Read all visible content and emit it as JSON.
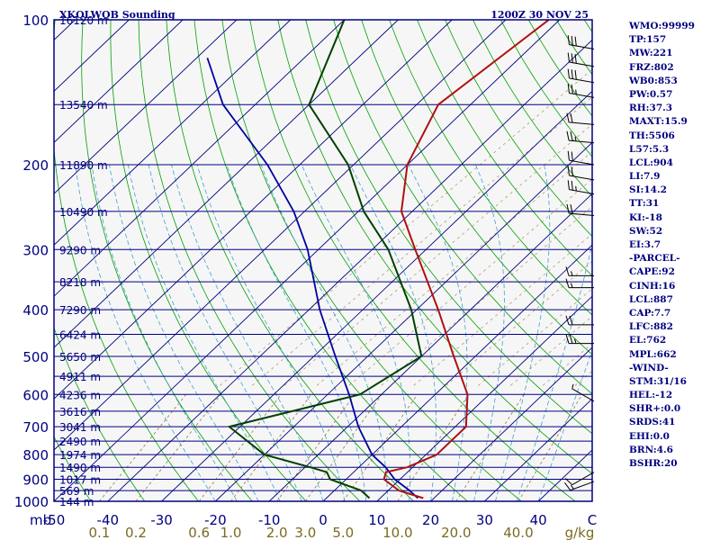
{
  "header": {
    "title": "XKQLWQB Sounding",
    "time": "1200Z 30 NOV 25"
  },
  "chart_data": {
    "type": "line",
    "diagram": "skew-t log-p",
    "pressure_range": [
      1000,
      100
    ],
    "temperature_range": [
      -50,
      50
    ],
    "pressure_labels": [
      "100",
      "200",
      "300",
      "400",
      "500",
      "600",
      "700",
      "800",
      "900",
      "1000"
    ],
    "pressure_levels": [
      100,
      150,
      200,
      250,
      300,
      350,
      400,
      450,
      500,
      550,
      600,
      650,
      700,
      750,
      800,
      850,
      900,
      950,
      1000
    ],
    "temperature_labels": [
      {
        "text": "-50",
        "t": -50
      },
      {
        "text": "-40",
        "t": -40
      },
      {
        "text": "-30",
        "t": -30
      },
      {
        "text": "-20",
        "t": -20
      },
      {
        "text": "-10",
        "t": -10
      },
      {
        "text": "0",
        "t": 0
      },
      {
        "text": "10",
        "t": 10
      },
      {
        "text": "20",
        "t": 20
      },
      {
        "text": "30",
        "t": 30
      },
      {
        "text": "40",
        "t": 40
      },
      {
        "text": "C",
        "t": 50
      }
    ],
    "pressure_axis_unit": "mb",
    "height_labels": [
      {
        "text": "16120 m",
        "p": 100
      },
      {
        "text": "13540 m",
        "p": 150
      },
      {
        "text": "11890 m",
        "p": 200
      },
      {
        "text": "10490 m",
        "p": 250
      },
      {
        "text": "9290 m",
        "p": 300
      },
      {
        "text": "8218 m",
        "p": 350
      },
      {
        "text": "7290 m",
        "p": 400
      },
      {
        "text": "6424 m",
        "p": 450
      },
      {
        "text": "5650 m",
        "p": 500
      },
      {
        "text": "4911 m",
        "p": 550
      },
      {
        "text": "4236 m",
        "p": 600
      },
      {
        "text": "3616 m",
        "p": 650
      },
      {
        "text": "3041 m",
        "p": 700
      },
      {
        "text": "2490 m",
        "p": 750
      },
      {
        "text": "1974 m",
        "p": 800
      },
      {
        "text": "1490 m",
        "p": 850
      },
      {
        "text": "1017 m",
        "p": 900
      },
      {
        "text": "569 m",
        "p": 950
      },
      {
        "text": "144 m",
        "p": 1000
      }
    ],
    "mixing_ratio_labels": [
      {
        "text": "0.1",
        "w": 0.1
      },
      {
        "text": "0.2",
        "w": 0.2
      },
      {
        "text": "0.6",
        "w": 0.6
      },
      {
        "text": "1.0",
        "w": 1.0
      },
      {
        "text": "2.0",
        "w": 2.0
      },
      {
        "text": "3.0",
        "w": 3.0
      },
      {
        "text": "5.0",
        "w": 5.0
      },
      {
        "text": "10.0",
        "w": 10.0
      },
      {
        "text": "20.0",
        "w": 20.0
      },
      {
        "text": "40.0",
        "w": 40.0
      }
    ],
    "mixing_ratio_unit": "g/kg",
    "temperature_profile": [
      {
        "p": 985,
        "t": 18
      },
      {
        "p": 950,
        "t": 12
      },
      {
        "p": 900,
        "t": 7
      },
      {
        "p": 870,
        "t": 6
      },
      {
        "p": 850,
        "t": 9
      },
      {
        "p": 800,
        "t": 12
      },
      {
        "p": 700,
        "t": 12
      },
      {
        "p": 600,
        "t": 6
      },
      {
        "p": 500,
        "t": -4
      },
      {
        "p": 400,
        "t": -16
      },
      {
        "p": 300,
        "t": -32
      },
      {
        "p": 250,
        "t": -42
      },
      {
        "p": 200,
        "t": -50
      },
      {
        "p": 150,
        "t": -56
      },
      {
        "p": 100,
        "t": -52
      }
    ],
    "dewpoint_profile": [
      {
        "p": 985,
        "t": 8
      },
      {
        "p": 950,
        "t": 5
      },
      {
        "p": 900,
        "t": -3
      },
      {
        "p": 870,
        "t": -5
      },
      {
        "p": 850,
        "t": -9
      },
      {
        "p": 800,
        "t": -20
      },
      {
        "p": 700,
        "t": -32
      },
      {
        "p": 600,
        "t": -14
      },
      {
        "p": 500,
        "t": -10
      },
      {
        "p": 400,
        "t": -21
      },
      {
        "p": 300,
        "t": -37
      },
      {
        "p": 250,
        "t": -49
      },
      {
        "p": 200,
        "t": -61
      },
      {
        "p": 150,
        "t": -80
      },
      {
        "p": 100,
        "t": -90
      }
    ],
    "parcel_profile": [
      {
        "p": 985,
        "t": 17
      },
      {
        "p": 950,
        "t": 14
      },
      {
        "p": 900,
        "t": 9
      },
      {
        "p": 850,
        "t": 5
      },
      {
        "p": 800,
        "t": 0
      },
      {
        "p": 700,
        "t": -8
      },
      {
        "p": 600,
        "t": -16
      },
      {
        "p": 500,
        "t": -26
      },
      {
        "p": 400,
        "t": -38
      },
      {
        "p": 300,
        "t": -52
      },
      {
        "p": 250,
        "t": -62
      },
      {
        "p": 200,
        "t": -76
      },
      {
        "p": 150,
        "t": -96
      },
      {
        "p": 120,
        "t": -108
      }
    ],
    "wind_barbs": [
      {
        "p": 115,
        "dir": 280,
        "kt": 30
      },
      {
        "p": 125,
        "dir": 280,
        "kt": 30
      },
      {
        "p": 135,
        "dir": 280,
        "kt": 30
      },
      {
        "p": 145,
        "dir": 280,
        "kt": 25
      },
      {
        "p": 165,
        "dir": 275,
        "kt": 20
      },
      {
        "p": 180,
        "dir": 275,
        "kt": 25
      },
      {
        "p": 200,
        "dir": 280,
        "kt": 20
      },
      {
        "p": 215,
        "dir": 280,
        "kt": 20
      },
      {
        "p": 230,
        "dir": 280,
        "kt": 25
      },
      {
        "p": 255,
        "dir": 275,
        "kt": 20
      },
      {
        "p": 340,
        "dir": 270,
        "kt": 15
      },
      {
        "p": 360,
        "dir": 270,
        "kt": 15
      },
      {
        "p": 430,
        "dir": 270,
        "kt": 20
      },
      {
        "p": 470,
        "dir": 270,
        "kt": 25
      },
      {
        "p": 620,
        "dir": 300,
        "kt": 5
      },
      {
        "p": 870,
        "dir": 240,
        "kt": 10
      },
      {
        "p": 910,
        "dir": 250,
        "kt": 15
      }
    ],
    "colors": {
      "background": "#f6f6f6",
      "frame": "#000080",
      "isobar": "#000080",
      "isotherm": "#000080",
      "dry_adiabat": "#00a000",
      "moist_adiabat": "#40a0d0",
      "mixing_ratio": "#8a7a3a",
      "temperature": "#b01010",
      "dewpoint": "#004000",
      "parcel": "#0000a0",
      "wind": "#000000"
    }
  },
  "indices": [
    "WMO:99999",
    "TP:157",
    "MW:221",
    "FRZ:802",
    "WB0:853",
    "PW:0.57",
    "RH:37.3",
    "MAXT:15.9",
    "TH:5506",
    "L57:5.3",
    "LCL:904",
    "LI:7.9",
    "SI:14.2",
    "TT:31",
    "KI:-18",
    "SW:52",
    "EI:3.7",
    "-PARCEL-",
    "CAPE:92",
    "CINH:16",
    "LCL:887",
    "CAP:7.7",
    "LFC:882",
    "EL:762",
    "MPL:662",
    "-WIND-",
    "STM:31/16",
    "HEL:-12",
    "SHR+:0.0",
    "SRDS:41",
    "EHI:0.0",
    "BRN:4.6",
    "BSHR:20"
  ]
}
